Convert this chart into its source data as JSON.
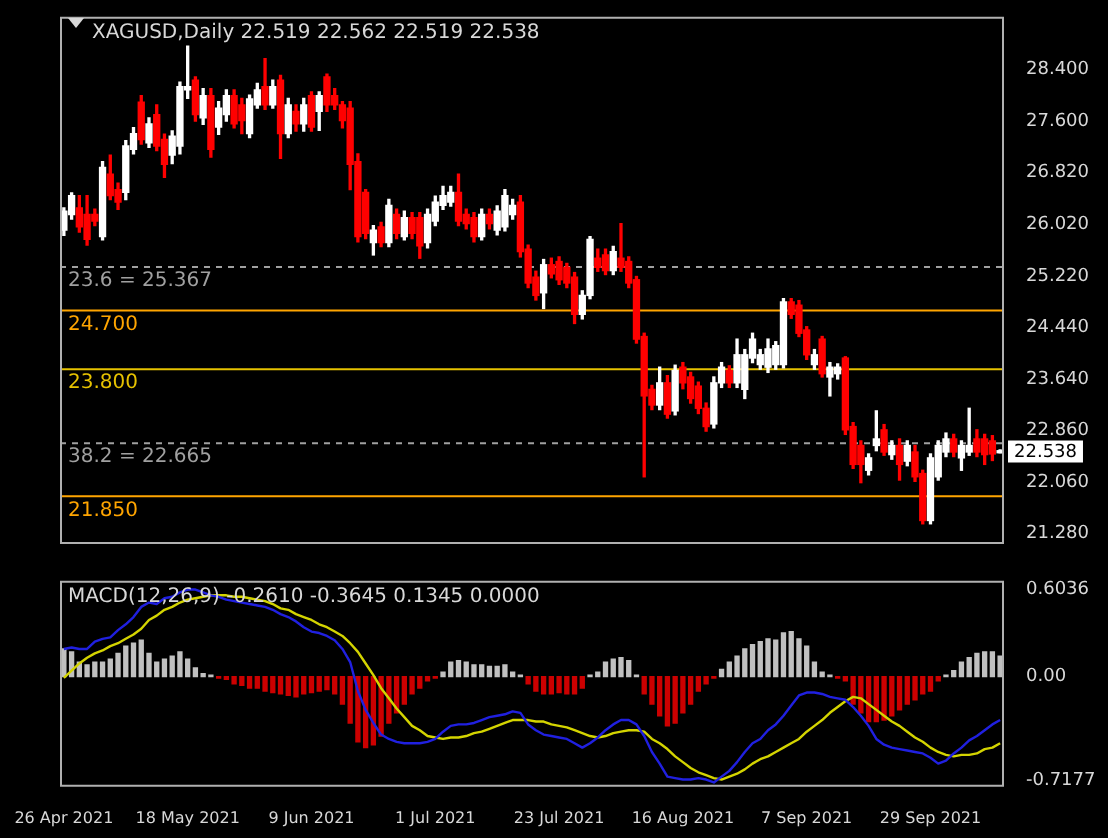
{
  "chart_data": [
    {
      "type": "candlestick",
      "title": "XAGUSD,Daily 22.519 22.562 22.519 22.538",
      "categories": [
        null,
        null,
        null,
        null,
        null,
        null,
        null,
        null,
        null,
        null,
        null,
        null,
        null,
        null,
        null,
        null,
        null,
        null,
        null,
        null,
        null,
        null,
        null,
        null,
        null,
        null,
        null,
        null,
        null,
        null,
        null,
        null,
        null,
        null,
        null,
        null,
        null,
        null,
        null,
        null,
        null,
        null,
        null,
        null,
        null,
        null,
        null,
        null,
        null,
        null,
        null,
        null,
        null,
        null,
        null,
        null,
        null,
        null,
        null,
        null,
        null,
        null,
        null,
        null,
        null,
        null,
        null,
        null,
        null,
        null,
        null,
        null,
        null,
        null,
        null,
        null,
        null,
        null,
        null,
        null,
        null,
        null,
        null,
        null,
        null,
        null,
        null,
        null,
        null,
        null,
        null,
        null,
        null,
        null,
        null,
        null,
        null,
        null,
        null,
        null,
        null,
        null,
        null,
        null,
        null,
        null,
        null,
        null,
        null,
        null,
        null,
        null,
        null,
        null,
        null,
        null,
        null,
        null,
        null,
        null,
        null,
        null
      ],
      "ohlc": [
        [
          25.93,
          26.27,
          25.85,
          26.22
        ],
        [
          26.17,
          26.5,
          26.1,
          26.46
        ],
        [
          26.27,
          26.46,
          25.9,
          25.98
        ],
        [
          26.17,
          26.46,
          25.7,
          25.79
        ],
        [
          26.17,
          26.25,
          26.0,
          26.07
        ],
        [
          25.83,
          26.98,
          25.78,
          26.89
        ],
        [
          26.79,
          27.08,
          26.4,
          26.46
        ],
        [
          26.55,
          26.65,
          26.25,
          26.36
        ],
        [
          26.51,
          27.3,
          26.4,
          27.22
        ],
        [
          27.17,
          27.5,
          27.1,
          27.41
        ],
        [
          27.89,
          27.99,
          27.25,
          27.32
        ],
        [
          27.27,
          27.65,
          27.2,
          27.56
        ],
        [
          27.7,
          27.85,
          27.15,
          27.22
        ],
        [
          27.32,
          27.4,
          26.74,
          26.94
        ],
        [
          27.08,
          27.45,
          26.95,
          27.37
        ],
        [
          27.22,
          28.2,
          27.1,
          28.13
        ],
        [
          28.08,
          28.75,
          27.95,
          28.13
        ],
        [
          28.23,
          28.28,
          27.6,
          27.7
        ],
        [
          27.65,
          28.1,
          27.55,
          27.99
        ],
        [
          27.99,
          28.1,
          27.05,
          27.17
        ],
        [
          27.51,
          27.9,
          27.4,
          27.8
        ],
        [
          27.7,
          28.08,
          27.6,
          27.99
        ],
        [
          27.99,
          28.08,
          27.5,
          27.56
        ],
        [
          27.85,
          27.95,
          27.41,
          27.61
        ],
        [
          27.41,
          28.0,
          27.35,
          27.94
        ],
        [
          27.85,
          28.18,
          27.8,
          28.08
        ],
        [
          28.13,
          28.56,
          27.78,
          27.85
        ],
        [
          27.85,
          28.23,
          27.8,
          28.13
        ],
        [
          28.23,
          28.3,
          27.03,
          27.41
        ],
        [
          27.41,
          27.95,
          27.35,
          27.85
        ],
        [
          27.75,
          27.85,
          27.45,
          27.56
        ],
        [
          27.56,
          27.95,
          27.45,
          27.85
        ],
        [
          27.99,
          28.05,
          27.45,
          27.51
        ],
        [
          27.75,
          28.05,
          27.46,
          27.99
        ],
        [
          28.28,
          28.32,
          27.75,
          27.85
        ],
        [
          27.99,
          28.1,
          27.78,
          27.85
        ],
        [
          27.85,
          27.9,
          27.5,
          27.61
        ],
        [
          27.8,
          27.9,
          26.55,
          26.94
        ],
        [
          26.98,
          27.1,
          25.75,
          25.83
        ],
        [
          26.51,
          26.55,
          25.8,
          25.88
        ],
        [
          25.74,
          26.0,
          25.55,
          25.93
        ],
        [
          25.98,
          26.05,
          25.68,
          25.74
        ],
        [
          25.74,
          26.4,
          25.68,
          26.31
        ],
        [
          26.17,
          26.25,
          25.8,
          25.88
        ],
        [
          25.83,
          26.22,
          25.78,
          26.12
        ],
        [
          26.12,
          26.2,
          25.8,
          25.88
        ],
        [
          26.12,
          26.2,
          25.5,
          25.69
        ],
        [
          25.74,
          26.25,
          25.66,
          26.17
        ],
        [
          26.07,
          26.45,
          26.0,
          26.36
        ],
        [
          26.31,
          26.6,
          26.25,
          26.46
        ],
        [
          26.36,
          26.6,
          26.3,
          26.51
        ],
        [
          26.51,
          26.79,
          26.0,
          26.07
        ],
        [
          26.17,
          26.25,
          25.95,
          26.03
        ],
        [
          26.12,
          26.2,
          25.75,
          25.83
        ],
        [
          25.83,
          26.25,
          25.78,
          26.17
        ],
        [
          26.17,
          26.25,
          25.95,
          26.03
        ],
        [
          25.93,
          26.3,
          25.86,
          26.22
        ],
        [
          25.98,
          26.55,
          25.92,
          26.46
        ],
        [
          26.17,
          26.4,
          26.1,
          26.31
        ],
        [
          26.36,
          26.46,
          25.52,
          25.6
        ],
        [
          25.64,
          25.7,
          25.05,
          25.12
        ],
        [
          25.21,
          25.3,
          24.86,
          24.93
        ],
        [
          24.97,
          25.48,
          24.73,
          25.4
        ],
        [
          25.4,
          25.5,
          25.2,
          25.26
        ],
        [
          25.45,
          25.52,
          25.1,
          25.17
        ],
        [
          25.36,
          25.42,
          25.05,
          25.12
        ],
        [
          25.21,
          25.28,
          24.5,
          24.64
        ],
        [
          24.64,
          25.0,
          24.57,
          24.93
        ],
        [
          24.93,
          25.83,
          24.88,
          25.79
        ],
        [
          25.5,
          25.64,
          25.3,
          25.36
        ],
        [
          25.55,
          25.64,
          25.25,
          25.31
        ],
        [
          25.31,
          25.68,
          25.25,
          25.6
        ],
        [
          25.5,
          26.03,
          25.3,
          25.36
        ],
        [
          25.45,
          25.52,
          25.05,
          25.12
        ],
        [
          25.17,
          25.22,
          24.2,
          24.26
        ],
        [
          24.3,
          24.35,
          22.15,
          23.39
        ],
        [
          23.49,
          23.55,
          23.18,
          23.25
        ],
        [
          23.25,
          23.83,
          23.18,
          23.59
        ],
        [
          23.59,
          23.7,
          23.05,
          23.11
        ],
        [
          23.16,
          23.86,
          23.1,
          23.78
        ],
        [
          23.83,
          23.9,
          23.5,
          23.59
        ],
        [
          23.68,
          23.75,
          23.28,
          23.35
        ],
        [
          23.54,
          23.6,
          23.12,
          23.2
        ],
        [
          23.2,
          23.28,
          22.85,
          22.92
        ],
        [
          22.96,
          23.68,
          22.9,
          23.59
        ],
        [
          23.59,
          23.9,
          23.52,
          23.83
        ],
        [
          23.78,
          23.85,
          23.52,
          23.59
        ],
        [
          23.59,
          24.26,
          23.52,
          24.02
        ],
        [
          23.49,
          24.1,
          23.35,
          24.02
        ],
        [
          23.97,
          24.35,
          23.9,
          24.26
        ],
        [
          23.87,
          24.1,
          23.8,
          24.02
        ],
        [
          23.83,
          24.26,
          23.75,
          24.11
        ],
        [
          23.87,
          24.22,
          23.8,
          24.16
        ],
        [
          23.87,
          24.88,
          23.82,
          24.83
        ],
        [
          24.83,
          24.88,
          24.58,
          24.64
        ],
        [
          24.78,
          24.85,
          24.3,
          24.35
        ],
        [
          24.4,
          24.45,
          23.95,
          24.02
        ],
        [
          23.87,
          24.1,
          23.8,
          24.02
        ],
        [
          24.26,
          24.3,
          23.68,
          23.73
        ],
        [
          23.68,
          23.9,
          23.39,
          23.83
        ],
        [
          23.73,
          23.88,
          23.65,
          23.83
        ],
        [
          23.97,
          23.99,
          22.8,
          22.87
        ],
        [
          22.92,
          22.98,
          22.28,
          22.34
        ],
        [
          22.63,
          22.7,
          22.06,
          22.34
        ],
        [
          22.25,
          22.5,
          22.18,
          22.44
        ],
        [
          22.63,
          23.16,
          22.55,
          22.73
        ],
        [
          22.87,
          22.95,
          22.48,
          22.53
        ],
        [
          22.49,
          22.7,
          22.42,
          22.63
        ],
        [
          22.63,
          22.73,
          22.1,
          22.34
        ],
        [
          22.39,
          22.7,
          22.32,
          22.63
        ],
        [
          22.53,
          22.63,
          22.08,
          22.15
        ],
        [
          22.2,
          22.25,
          21.43,
          21.48
        ],
        [
          21.48,
          22.5,
          21.43,
          22.44
        ],
        [
          22.15,
          22.7,
          22.1,
          22.63
        ],
        [
          22.53,
          22.82,
          22.46,
          22.73
        ],
        [
          22.73,
          22.8,
          22.46,
          22.53
        ],
        [
          22.44,
          22.7,
          22.25,
          22.63
        ],
        [
          22.53,
          23.2,
          22.48,
          22.63
        ],
        [
          22.73,
          22.87,
          22.46,
          22.53
        ],
        [
          22.73,
          22.8,
          22.34,
          22.49
        ],
        [
          22.7,
          22.78,
          22.4,
          22.5
        ],
        [
          22.519,
          22.562,
          22.519,
          22.538
        ]
      ],
      "colors": [
        "#ffffff",
        "#ffffff",
        "#ff0000",
        "#ff0000",
        "#ff0000",
        "#ffffff",
        "#ff0000",
        "#ff0000",
        "#ffffff",
        "#ffffff",
        "#ff0000",
        "#ffffff",
        "#ff0000",
        "#ff0000",
        "#ffffff",
        "#ffffff",
        "#ffffff",
        "#ff0000",
        "#ffffff",
        "#ff0000",
        "#ffffff",
        "#ffffff",
        "#ff0000",
        "#ff0000",
        "#ffffff",
        "#ffffff",
        "#ff0000",
        "#ffffff",
        "#ff0000",
        "#ffffff",
        "#ff0000",
        "#ffffff",
        "#ff0000",
        "#ffffff",
        "#ff0000",
        "#ff0000",
        "#ff0000",
        "#ff0000",
        "#ff0000",
        "#ff0000",
        "#ffffff",
        "#ff0000",
        "#ffffff",
        "#ff0000",
        "#ffffff",
        "#ff0000",
        "#ff0000",
        "#ffffff",
        "#ffffff",
        "#ffffff",
        "#ffffff",
        "#ff0000",
        "#ff0000",
        "#ff0000",
        "#ffffff",
        "#ff0000",
        "#ffffff",
        "#ffffff",
        "#ffffff",
        "#ff0000",
        "#ff0000",
        "#ff0000",
        "#ffffff",
        "#ff0000",
        "#ff0000",
        "#ff0000",
        "#ff0000",
        "#ffffff",
        "#ffffff",
        "#ff0000",
        "#ff0000",
        "#ffffff",
        "#ff0000",
        "#ff0000",
        "#ff0000",
        "#ff0000",
        "#ff0000",
        "#ffffff",
        "#ff0000",
        "#ffffff",
        "#ff0000",
        "#ff0000",
        "#ff0000",
        "#ff0000",
        "#ffffff",
        "#ffffff",
        "#ff0000",
        "#ffffff",
        "#ffffff",
        "#ffffff",
        "#ffffff",
        "#ffffff",
        "#ffffff",
        "#ffffff",
        "#ff0000",
        "#ff0000",
        "#ff0000",
        "#ffffff",
        "#ff0000",
        "#ffffff",
        "#ffffff",
        "#ff0000",
        "#ff0000",
        "#ff0000",
        "#ffffff",
        "#ffffff",
        "#ff0000",
        "#ffffff",
        "#ff0000",
        "#ffffff",
        "#ff0000",
        "#ff0000",
        "#ffffff",
        "#ffffff",
        "#ffffff",
        "#ff0000",
        "#ffffff",
        "#ffffff",
        "#ff0000",
        "#ff0000",
        "#ff0000",
        "#ffffff"
      ],
      "ylim": [
        21.12,
        29.2
      ],
      "yticks": [
        {
          "value": 28.4,
          "label": "28.400"
        },
        {
          "value": 27.6,
          "label": "27.600"
        },
        {
          "value": 26.82,
          "label": "26.820"
        },
        {
          "value": 26.02,
          "label": "26.020"
        },
        {
          "value": 25.22,
          "label": "25.220"
        },
        {
          "value": 24.44,
          "label": "24.440"
        },
        {
          "value": 23.64,
          "label": "23.640"
        },
        {
          "value": 22.86,
          "label": "22.860"
        },
        {
          "value": 22.06,
          "label": "22.060"
        },
        {
          "value": 21.28,
          "label": "21.280"
        }
      ],
      "tick_labels": "y",
      "ref_lines": [
        {
          "axis": "y",
          "value": 25.367,
          "label": "23.6 = 25.367",
          "color": "#a0a0a0",
          "line_style": "dashed"
        },
        {
          "axis": "y",
          "value": 24.7,
          "label": "24.700",
          "color": "#ffa500",
          "line_style": "solid"
        },
        {
          "axis": "y",
          "value": 23.8,
          "label": "23.800",
          "color": "#e6c200",
          "line_style": "solid"
        },
        {
          "axis": "y",
          "value": 22.665,
          "label": "38.2 = 22.665",
          "color": "#a0a0a0",
          "line_style": "dashed"
        },
        {
          "axis": "y",
          "value": 21.85,
          "label": "21.850",
          "color": "#ffa500",
          "line_style": "solid"
        }
      ],
      "annotations": [
        "22.538"
      ]
    },
    {
      "type": "bar",
      "title": "MACD(12,26,9) -0.2610 -0.3645 0.1345 0.0000",
      "categories": [
        "26 Apr 2021",
        null,
        null,
        null,
        null,
        null,
        null,
        null,
        null,
        null,
        null,
        null,
        null,
        null,
        null,
        null,
        "18 May 2021",
        null,
        null,
        null,
        null,
        null,
        null,
        null,
        null,
        null,
        null,
        null,
        null,
        null,
        null,
        null,
        "9 Jun 2021",
        null,
        null,
        null,
        null,
        null,
        null,
        null,
        null,
        null,
        null,
        null,
        null,
        null,
        null,
        null,
        "1 Jul 2021",
        null,
        null,
        null,
        null,
        null,
        null,
        null,
        null,
        null,
        null,
        null,
        null,
        null,
        null,
        null,
        "23 Jul 2021",
        null,
        null,
        null,
        null,
        null,
        null,
        null,
        null,
        null,
        null,
        null,
        null,
        null,
        null,
        null,
        "16 Aug 2021",
        null,
        null,
        null,
        null,
        null,
        null,
        null,
        null,
        null,
        null,
        null,
        null,
        null,
        null,
        null,
        "7 Sep 2021",
        null,
        null,
        null,
        null,
        null,
        null,
        null,
        null,
        null,
        null,
        null,
        null,
        null,
        null,
        null,
        "29 Sep 2021",
        null,
        null,
        null,
        null,
        null,
        null,
        null,
        null,
        null
      ],
      "series": [
        {
          "type": "bar",
          "values": [
            0.19,
            0.17,
            0.1,
            0.08,
            0.1,
            0.1,
            0.12,
            0.16,
            0.21,
            0.23,
            0.25,
            0.16,
            0.1,
            0.12,
            0.14,
            0.17,
            0.12,
            0.06,
            0.02,
            0.01,
            -0.01,
            -0.02,
            -0.05,
            -0.06,
            -0.08,
            -0.08,
            -0.1,
            -0.11,
            -0.12,
            -0.13,
            -0.14,
            -0.12,
            -0.11,
            -0.1,
            -0.09,
            -0.12,
            -0.19,
            -0.32,
            -0.45,
            -0.49,
            -0.47,
            -0.41,
            -0.32,
            -0.25,
            -0.19,
            -0.12,
            -0.08,
            -0.03,
            -0.01,
            0.03,
            0.1,
            0.11,
            0.1,
            0.08,
            0.08,
            0.07,
            0.07,
            0.08,
            0.03,
            0.01,
            -0.05,
            -0.1,
            -0.12,
            -0.12,
            -0.11,
            -0.12,
            -0.12,
            -0.08,
            0.01,
            0.03,
            0.1,
            0.12,
            0.13,
            0.11,
            0.01,
            -0.12,
            -0.19,
            -0.27,
            -0.34,
            -0.32,
            -0.25,
            -0.19,
            -0.1,
            -0.05,
            -0.01,
            0.05,
            0.1,
            0.14,
            0.19,
            0.22,
            0.24,
            0.26,
            0.25,
            0.3,
            0.31,
            0.26,
            0.21,
            0.1,
            0.03,
            0.01,
            -0.01,
            -0.03,
            -0.19,
            -0.25,
            -0.31,
            -0.31,
            -0.3,
            -0.27,
            -0.23,
            -0.19,
            -0.16,
            -0.12,
            -0.1,
            -0.03,
            0.01,
            0.04,
            0.1,
            0.13,
            0.16,
            0.17,
            0.17,
            0.14
          ],
          "colors": [
            "#c0c0c0",
            "#c0c0c0",
            "#c0c0c0",
            "#c0c0c0",
            "#c0c0c0",
            "#c0c0c0",
            "#c0c0c0",
            "#c0c0c0",
            "#c0c0c0",
            "#c0c0c0",
            "#c0c0c0",
            "#c0c0c0",
            "#c0c0c0",
            "#c0c0c0",
            "#c0c0c0",
            "#c0c0c0",
            "#c0c0c0",
            "#c0c0c0",
            "#c0c0c0",
            "#c0c0c0",
            "#cc0000",
            "#cc0000",
            "#cc0000",
            "#cc0000",
            "#cc0000",
            "#cc0000",
            "#cc0000",
            "#cc0000",
            "#cc0000",
            "#cc0000",
            "#cc0000",
            "#cc0000",
            "#cc0000",
            "#cc0000",
            "#cc0000",
            "#cc0000",
            "#cc0000",
            "#cc0000",
            "#cc0000",
            "#cc0000",
            "#cc0000",
            "#cc0000",
            "#cc0000",
            "#cc0000",
            "#cc0000",
            "#cc0000",
            "#cc0000",
            "#cc0000",
            "#cc0000",
            "#c0c0c0",
            "#c0c0c0",
            "#c0c0c0",
            "#c0c0c0",
            "#c0c0c0",
            "#c0c0c0",
            "#c0c0c0",
            "#c0c0c0",
            "#c0c0c0",
            "#c0c0c0",
            "#c0c0c0",
            "#cc0000",
            "#cc0000",
            "#cc0000",
            "#cc0000",
            "#cc0000",
            "#cc0000",
            "#cc0000",
            "#cc0000",
            "#c0c0c0",
            "#c0c0c0",
            "#c0c0c0",
            "#c0c0c0",
            "#c0c0c0",
            "#c0c0c0",
            "#c0c0c0",
            "#cc0000",
            "#cc0000",
            "#cc0000",
            "#cc0000",
            "#cc0000",
            "#cc0000",
            "#cc0000",
            "#cc0000",
            "#cc0000",
            "#cc0000",
            "#c0c0c0",
            "#c0c0c0",
            "#c0c0c0",
            "#c0c0c0",
            "#c0c0c0",
            "#c0c0c0",
            "#c0c0c0",
            "#c0c0c0",
            "#c0c0c0",
            "#c0c0c0",
            "#c0c0c0",
            "#c0c0c0",
            "#c0c0c0",
            "#c0c0c0",
            "#c0c0c0",
            "#cc0000",
            "#cc0000",
            "#cc0000",
            "#cc0000",
            "#cc0000",
            "#cc0000",
            "#cc0000",
            "#cc0000",
            "#cc0000",
            "#cc0000",
            "#cc0000",
            "#cc0000",
            "#cc0000",
            "#cc0000",
            "#c0c0c0",
            "#c0c0c0",
            "#c0c0c0",
            "#c0c0c0",
            "#c0c0c0",
            "#c0c0c0",
            "#c0c0c0",
            "#c0c0c0"
          ]
        },
        {
          "type": "line",
          "color": "#2020e0",
          "values": [
            0.19,
            0.2,
            0.19,
            0.19,
            0.24,
            0.26,
            0.27,
            0.32,
            0.36,
            0.41,
            0.48,
            0.51,
            0.5,
            0.54,
            0.55,
            0.58,
            0.6,
            0.6,
            0.58,
            0.56,
            0.55,
            0.53,
            0.52,
            0.51,
            0.5,
            0.49,
            0.48,
            0.46,
            0.43,
            0.41,
            0.38,
            0.34,
            0.31,
            0.3,
            0.28,
            0.25,
            0.19,
            0.1,
            -0.1,
            -0.23,
            -0.32,
            -0.4,
            -0.43,
            -0.45,
            -0.46,
            -0.46,
            -0.46,
            -0.45,
            -0.43,
            -0.38,
            -0.34,
            -0.33,
            -0.33,
            -0.32,
            -0.3,
            -0.28,
            -0.27,
            -0.26,
            -0.24,
            -0.25,
            -0.33,
            -0.37,
            -0.4,
            -0.41,
            -0.42,
            -0.43,
            -0.46,
            -0.49,
            -0.46,
            -0.42,
            -0.37,
            -0.33,
            -0.3,
            -0.3,
            -0.33,
            -0.41,
            -0.52,
            -0.6,
            -0.69,
            -0.7,
            -0.71,
            -0.71,
            -0.7,
            -0.71,
            -0.73,
            -0.69,
            -0.65,
            -0.59,
            -0.52,
            -0.46,
            -0.43,
            -0.37,
            -0.33,
            -0.27,
            -0.2,
            -0.13,
            -0.11,
            -0.11,
            -0.12,
            -0.14,
            -0.15,
            -0.16,
            -0.21,
            -0.27,
            -0.34,
            -0.43,
            -0.47,
            -0.49,
            -0.5,
            -0.51,
            -0.52,
            -0.53,
            -0.56,
            -0.6,
            -0.58,
            -0.53,
            -0.49,
            -0.44,
            -0.41,
            -0.37,
            -0.33,
            -0.3
          ]
        },
        {
          "type": "line",
          "color": "#d4d400",
          "values": [
            -0.01,
            0.04,
            0.09,
            0.13,
            0.16,
            0.18,
            0.21,
            0.23,
            0.26,
            0.29,
            0.33,
            0.39,
            0.42,
            0.46,
            0.48,
            0.51,
            0.53,
            0.54,
            0.55,
            0.56,
            0.56,
            0.56,
            0.55,
            0.55,
            0.54,
            0.53,
            0.52,
            0.5,
            0.47,
            0.46,
            0.43,
            0.41,
            0.39,
            0.36,
            0.34,
            0.31,
            0.28,
            0.23,
            0.17,
            0.09,
            0.01,
            -0.08,
            -0.15,
            -0.22,
            -0.28,
            -0.34,
            -0.37,
            -0.41,
            -0.42,
            -0.43,
            -0.42,
            -0.42,
            -0.41,
            -0.39,
            -0.38,
            -0.36,
            -0.34,
            -0.32,
            -0.3,
            -0.3,
            -0.3,
            -0.31,
            -0.31,
            -0.33,
            -0.34,
            -0.35,
            -0.37,
            -0.39,
            -0.41,
            -0.42,
            -0.41,
            -0.39,
            -0.38,
            -0.37,
            -0.37,
            -0.38,
            -0.43,
            -0.46,
            -0.5,
            -0.55,
            -0.59,
            -0.63,
            -0.66,
            -0.68,
            -0.7,
            -0.71,
            -0.69,
            -0.67,
            -0.64,
            -0.6,
            -0.57,
            -0.55,
            -0.52,
            -0.49,
            -0.46,
            -0.43,
            -0.38,
            -0.34,
            -0.3,
            -0.25,
            -0.21,
            -0.17,
            -0.14,
            -0.15,
            -0.19,
            -0.23,
            -0.27,
            -0.31,
            -0.34,
            -0.38,
            -0.42,
            -0.45,
            -0.49,
            -0.52,
            -0.54,
            -0.55,
            -0.54,
            -0.54,
            -0.53,
            -0.5,
            -0.49,
            -0.46
          ]
        }
      ],
      "ylim": [
        -0.76,
        0.66
      ],
      "yticks": [
        {
          "value": 0.6036,
          "label": "0.6036"
        },
        {
          "value": 0,
          "label": "0.00"
        },
        {
          "value": -0.7177,
          "label": "-0.7177"
        }
      ],
      "marker": "none",
      "line_style": "solid"
    }
  ]
}
